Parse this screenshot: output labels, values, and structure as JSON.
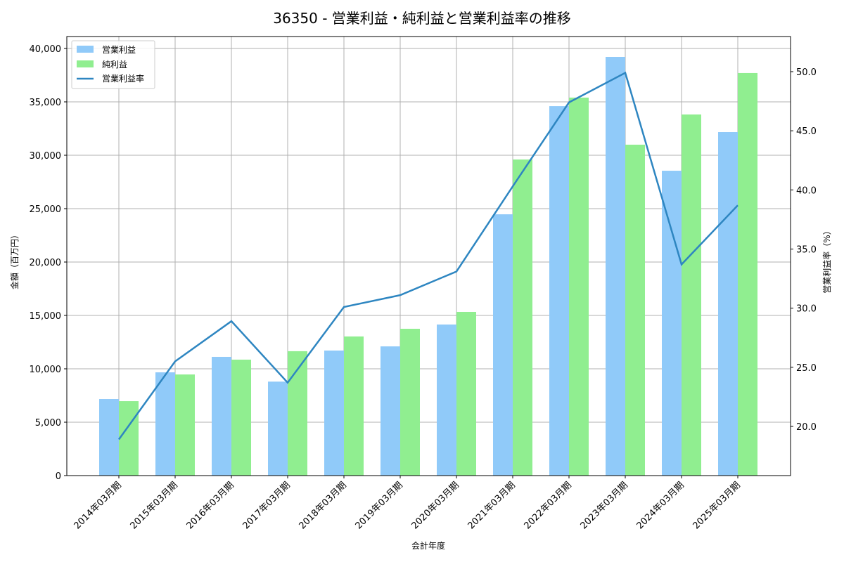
{
  "chart_data": {
    "type": "bar",
    "title": "36350 - 営業利益・純利益と営業利益率の推移",
    "xlabel": "会計年度",
    "ylabel": "金額（百万円）",
    "y2label": "営業利益率（%）",
    "categories": [
      "2014年03月期",
      "2015年03月期",
      "2016年03月期",
      "2017年03月期",
      "2018年03月期",
      "2019年03月期",
      "2020年03月期",
      "2021年03月期",
      "2022年03月期",
      "2023年03月期",
      "2024年03月期",
      "2025年03月期"
    ],
    "series": [
      {
        "name": "営業利益",
        "type": "bar",
        "axis": "left",
        "color": "#90caf9",
        "values": [
          7170,
          9670,
          11120,
          8800,
          11710,
          12100,
          14150,
          24470,
          34600,
          39210,
          28550,
          32170
        ]
      },
      {
        "name": "純利益",
        "type": "bar",
        "axis": "left",
        "color": "#90ee90",
        "values": [
          6970,
          9470,
          10860,
          11650,
          13030,
          13750,
          15330,
          29600,
          35400,
          30990,
          33820,
          37700
        ]
      },
      {
        "name": "営業利益率",
        "type": "line",
        "axis": "right",
        "color": "#2e86c1",
        "values": [
          18.9,
          25.5,
          28.9,
          23.7,
          30.1,
          31.1,
          33.1,
          40.3,
          47.4,
          49.9,
          33.7,
          38.7
        ]
      }
    ],
    "ylim": [
      0,
      41000
    ],
    "y2lim": [
      15.8,
      53.0
    ],
    "yticks": [
      0,
      5000,
      10000,
      15000,
      20000,
      25000,
      30000,
      35000,
      40000
    ],
    "ytick_labels": [
      "0",
      "5,000",
      "10,000",
      "15,000",
      "20,000",
      "25,000",
      "30,000",
      "35,000",
      "40,000"
    ],
    "y2ticks": [
      20,
      25,
      30,
      35,
      40,
      45,
      50
    ],
    "y2tick_labels": [
      "20.0",
      "25.0",
      "30.0",
      "35.0",
      "40.0",
      "45.0",
      "50.0"
    ],
    "grid": true,
    "legend_position": "upper left"
  }
}
